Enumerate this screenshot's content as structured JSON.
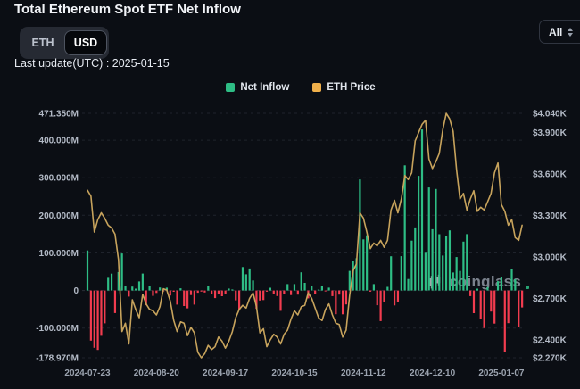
{
  "header": {
    "title": "Total Ethereum Spot ETF Net Inflow"
  },
  "controls": {
    "currency_toggle": {
      "options": [
        "ETH",
        "USD"
      ],
      "selected": "USD"
    },
    "range_select": {
      "value": "All"
    }
  },
  "last_update": "Last update(UTC) : 2025-01-15",
  "legend": [
    {
      "label": "Net Inflow",
      "color": "#2ebd85"
    },
    {
      "label": "ETH Price",
      "color": "#f0b04b"
    }
  ],
  "watermark": {
    "text": "coinglass",
    "dot_color": "#2ebd85"
  },
  "chart_data": {
    "type": "bar+line",
    "title": "Total Ethereum Spot ETF Net Inflow",
    "grid": "horizontal-dashed",
    "legend_position": "top-center",
    "x_start_date": "2024-07-23",
    "x_end_date": "2025-01-15",
    "x_ticks": [
      {
        "index": 0,
        "label": "2024-07-23"
      },
      {
        "index": 20,
        "label": "2024-08-20"
      },
      {
        "index": 40,
        "label": "2024-09-17"
      },
      {
        "index": 60,
        "label": "2024-10-15"
      },
      {
        "index": 80,
        "label": "2024-11-12"
      },
      {
        "index": 100,
        "label": "2024-12-10"
      },
      {
        "index": 120,
        "label": "2025-01-07"
      }
    ],
    "y_axis_left": {
      "labels": [
        "471.350M",
        "400.000M",
        "300.000M",
        "200.000M",
        "100.000M",
        "0",
        "-100.000M",
        "-178.970M"
      ],
      "values": [
        471.35,
        400,
        300,
        200,
        100,
        0,
        -100,
        -178.97
      ],
      "range": [
        -178.97,
        471.35
      ],
      "unit": "USD millions"
    },
    "y_axis_right": {
      "labels": [
        "$4.040K",
        "$3.900K",
        "$3.600K",
        "$3.300K",
        "$3.000K",
        "$2.700K",
        "$2.400K",
        "$2.270K"
      ],
      "values": [
        4040,
        3900,
        3600,
        3300,
        3000,
        2700,
        2400,
        2270
      ],
      "range": [
        2270,
        4040
      ],
      "unit": "USD"
    },
    "series": [
      {
        "name": "Net Inflow",
        "type": "bar",
        "axis": "left",
        "pos_color": "#2ebd85",
        "neg_color": "#f23c4f",
        "values": [
          106.6,
          -133.3,
          -152.4,
          -158,
          -120.5,
          -87.3,
          33.7,
          44.9,
          -60,
          49.1,
          98.4,
          10.8,
          -16.1,
          10.5,
          4.9,
          24.3,
          45,
          -39.1,
          10.8,
          -14.2,
          -6.5,
          8,
          -0.8,
          7.7,
          -13.2,
          -3.4,
          -37.5,
          5.9,
          -41.3,
          -47.4,
          -12,
          -37.5,
          -6,
          -2.9,
          -5.2,
          11.4,
          -9.7,
          -20.1,
          -9.4,
          -15.1,
          -9.8,
          5.2,
          2.9,
          -26,
          -52,
          62.5,
          43.2,
          58.7,
          26.9,
          -48.6,
          -26.6,
          -25.4,
          -3.2,
          7.4,
          -8.2,
          -14.7,
          -54,
          -10.1,
          17.1,
          -12,
          17,
          -10.9,
          48.4,
          20.4,
          -20.8,
          11.9,
          -10.4,
          2.3,
          11.9,
          -1.1,
          7.6,
          -15,
          -63.2,
          -10.9,
          -63.3,
          -37,
          52.3,
          79.7,
          85.8,
          295.5,
          135.9,
          146.9,
          -3.2,
          17,
          -39.1,
          -81.3,
          -30.3,
          9.7,
          91.2,
          -39.7,
          -30.7,
          91.4,
          332.9,
          30.7,
          132.7,
          167.7,
          305,
          428.5,
          100.3,
          274,
          163,
          270,
          149.8,
          93,
          144,
          160,
          48,
          89,
          52,
          130,
          150,
          -15,
          -60.3,
          5,
          -75.1,
          -100,
          9,
          -56,
          -88,
          25,
          35,
          -162.7,
          -86.8,
          58,
          30,
          -97,
          -45
        ]
      },
      {
        "name": "ETH Price",
        "type": "line",
        "axis": "right",
        "color": "#c7a35c",
        "values": [
          3483,
          3440,
          3180,
          3270,
          3320,
          3280,
          3230,
          3210,
          3165,
          2980,
          2460,
          2520,
          2370,
          2690,
          2620,
          2560,
          2730,
          2660,
          2620,
          2610,
          2580,
          2640,
          2770,
          2760,
          2680,
          2540,
          2460,
          2530,
          2520,
          2430,
          2490,
          2450,
          2310,
          2270,
          2300,
          2360,
          2330,
          2350,
          2420,
          2390,
          2340,
          2390,
          2460,
          2560,
          2620,
          2650,
          2630,
          2700,
          2740,
          2640,
          2450,
          2480,
          2350,
          2400,
          2440,
          2420,
          2370,
          2440,
          2470,
          2550,
          2610,
          2580,
          2640,
          2650,
          2740,
          2700,
          2630,
          2560,
          2540,
          2620,
          2660,
          2580,
          2520,
          2510,
          2420,
          2470,
          2720,
          2900,
          2950,
          3320,
          3280,
          3180,
          3060,
          3100,
          3080,
          3120,
          3070,
          3120,
          3340,
          3410,
          3320,
          3420,
          3590,
          3560,
          3610,
          3840,
          3900,
          3960,
          3990,
          3710,
          3640,
          3690,
          3750,
          3920,
          4040,
          4000,
          3910,
          3630,
          3420,
          3460,
          3340,
          3420,
          3480,
          3330,
          3360,
          3340,
          3400,
          3460,
          3610,
          3680,
          3380,
          3330,
          3230,
          3270,
          3140,
          3120,
          3230
        ]
      }
    ]
  }
}
